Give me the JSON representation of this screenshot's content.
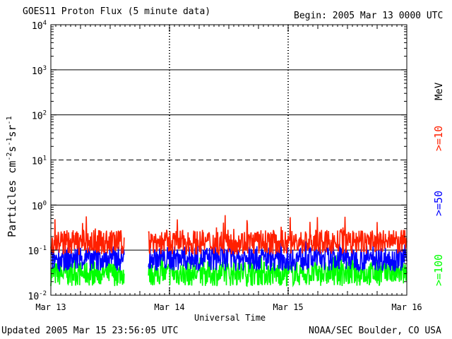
{
  "header": {
    "title": "GOES11 Proton Flux (5 minute data)",
    "begin": "Begin: 2005 Mar 13 0000 UTC"
  },
  "footer": {
    "updated": "Updated 2005 Mar 15 23:56:05 UTC",
    "credit": "NOAA/SEC Boulder, CO USA"
  },
  "chart_data": {
    "type": "line",
    "title": "GOES11 Proton Flux (5 minute data)",
    "xlabel": "Universal Time",
    "ylabel": "Particles cm-2s-1sr-1",
    "yscale": "log",
    "ylim": [
      0.01,
      10000
    ],
    "xlim_days": [
      0,
      3
    ],
    "x_tick_labels": [
      "Mar 13",
      "Mar 14",
      "Mar 15",
      "Mar 16"
    ],
    "y_ticks": [
      {
        "base": "10",
        "exp": "-2",
        "value": 0.01
      },
      {
        "base": "10",
        "exp": "-1",
        "value": 0.1
      },
      {
        "base": "10",
        "exp": "0",
        "value": 1
      },
      {
        "base": "10",
        "exp": "1",
        "value": 10
      },
      {
        "base": "10",
        "exp": "2",
        "value": 100
      },
      {
        "base": "10",
        "exp": "3",
        "value": 1000
      },
      {
        "base": "10",
        "exp": "4",
        "value": 10000
      }
    ],
    "reference_lines": [
      {
        "value": 0.1,
        "style": "solid"
      },
      {
        "value": 1,
        "style": "solid"
      },
      {
        "value": 10,
        "style": "dashed"
      },
      {
        "value": 100,
        "style": "solid"
      },
      {
        "value": 1000,
        "style": "solid"
      }
    ],
    "data_gap_days": [
      0.62,
      0.82
    ],
    "legend_unit": "MeV",
    "series": [
      {
        "name": ">=10",
        "color": "#ff2000",
        "typical_flux": 0.15,
        "min_flux": 0.07,
        "max_flux": 0.6
      },
      {
        "name": ">=50",
        "color": "#0000ff",
        "typical_flux": 0.065,
        "min_flux": 0.035,
        "max_flux": 0.16
      },
      {
        "name": ">=100",
        "color": "#00ff00",
        "typical_flux": 0.03,
        "min_flux": 0.015,
        "max_flux": 0.08
      }
    ]
  }
}
